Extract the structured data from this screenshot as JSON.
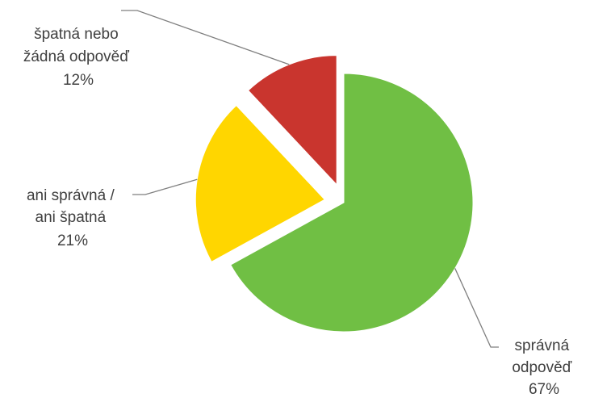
{
  "chart_data": {
    "type": "pie",
    "title": "",
    "legend": "none",
    "slices": [
      {
        "label_lines": [
          "správná",
          "odpověď"
        ],
        "value": 67,
        "value_label": "67%",
        "color": "#70bf44"
      },
      {
        "label_lines": [
          "ani správná /",
          "ani špatná"
        ],
        "value": 21,
        "value_label": "21%",
        "color": "#ffd600"
      },
      {
        "label_lines": [
          "špatná nebo",
          "žádná odpověď"
        ],
        "value": 12,
        "value_label": "12%",
        "color": "#c9352e"
      }
    ]
  }
}
